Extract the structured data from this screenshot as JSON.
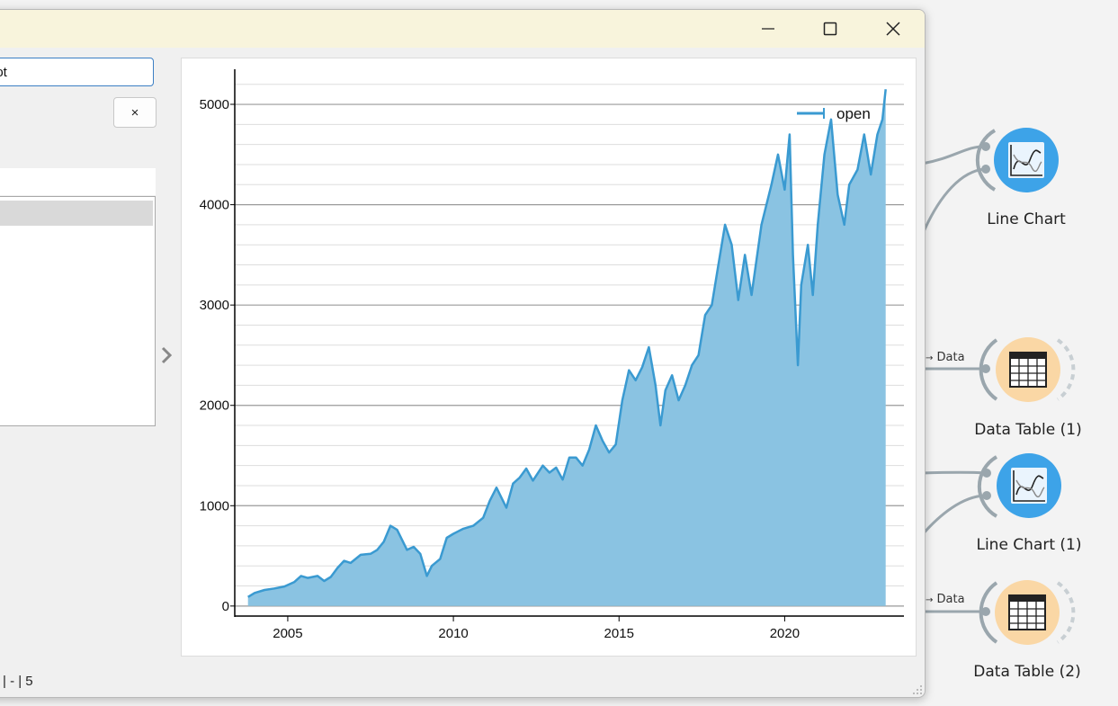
{
  "canvas": {
    "nodes": [
      {
        "label": "Line Chart",
        "icon": "line-chart-icon"
      },
      {
        "label": "Data Table (1)",
        "icon": "table-icon"
      },
      {
        "label": "Line Chart (1)",
        "icon": "line-chart-icon"
      },
      {
        "label": "Data Table (2)",
        "icon": "table-icon"
      }
    ],
    "links": [
      {
        "label": "Data"
      },
      {
        "label": "Data"
      }
    ],
    "link_arrow": "→"
  },
  "window": {
    "controls": {
      "minimize": "minimize-icon",
      "maximize": "maximize-icon",
      "close": "close-icon"
    },
    "name_field_value": "lot",
    "clear_label": "×",
    "status_text": "| - | 5"
  },
  "colors": {
    "line": "#3a9ad1",
    "fill": "#8ac3e2",
    "major_grid": "#9a9a9a",
    "minor_grid": "#dddddd",
    "node_blue": "#3da3e8",
    "node_orange": "#fad7a5",
    "title_bar": "#f8f4dc"
  },
  "chart_data": {
    "type": "area",
    "series": [
      {
        "name": "open",
        "points": [
          [
            2003.8,
            90
          ],
          [
            2004.0,
            130
          ],
          [
            2004.3,
            160
          ],
          [
            2004.6,
            175
          ],
          [
            2004.9,
            195
          ],
          [
            2005.2,
            240
          ],
          [
            2005.4,
            300
          ],
          [
            2005.6,
            280
          ],
          [
            2005.9,
            300
          ],
          [
            2006.1,
            250
          ],
          [
            2006.3,
            290
          ],
          [
            2006.5,
            380
          ],
          [
            2006.7,
            450
          ],
          [
            2006.9,
            430
          ],
          [
            2007.2,
            510
          ],
          [
            2007.5,
            520
          ],
          [
            2007.7,
            560
          ],
          [
            2007.9,
            640
          ],
          [
            2008.1,
            800
          ],
          [
            2008.3,
            760
          ],
          [
            2008.6,
            560
          ],
          [
            2008.8,
            590
          ],
          [
            2009.0,
            520
          ],
          [
            2009.2,
            300
          ],
          [
            2009.35,
            400
          ],
          [
            2009.6,
            470
          ],
          [
            2009.8,
            680
          ],
          [
            2010.0,
            720
          ],
          [
            2010.3,
            770
          ],
          [
            2010.6,
            800
          ],
          [
            2010.9,
            880
          ],
          [
            2011.1,
            1050
          ],
          [
            2011.3,
            1180
          ],
          [
            2011.6,
            980
          ],
          [
            2011.8,
            1220
          ],
          [
            2012.0,
            1280
          ],
          [
            2012.2,
            1370
          ],
          [
            2012.4,
            1250
          ],
          [
            2012.7,
            1400
          ],
          [
            2012.9,
            1330
          ],
          [
            2013.1,
            1380
          ],
          [
            2013.3,
            1260
          ],
          [
            2013.5,
            1480
          ],
          [
            2013.7,
            1480
          ],
          [
            2013.9,
            1400
          ],
          [
            2014.1,
            1560
          ],
          [
            2014.3,
            1800
          ],
          [
            2014.5,
            1650
          ],
          [
            2014.7,
            1530
          ],
          [
            2014.9,
            1610
          ],
          [
            2015.1,
            2050
          ],
          [
            2015.3,
            2350
          ],
          [
            2015.5,
            2250
          ],
          [
            2015.7,
            2380
          ],
          [
            2015.9,
            2580
          ],
          [
            2016.1,
            2200
          ],
          [
            2016.25,
            1800
          ],
          [
            2016.4,
            2150
          ],
          [
            2016.6,
            2300
          ],
          [
            2016.8,
            2050
          ],
          [
            2017.0,
            2200
          ],
          [
            2017.2,
            2400
          ],
          [
            2017.4,
            2500
          ],
          [
            2017.6,
            2900
          ],
          [
            2017.8,
            3000
          ],
          [
            2018.0,
            3400
          ],
          [
            2018.2,
            3800
          ],
          [
            2018.4,
            3600
          ],
          [
            2018.6,
            3050
          ],
          [
            2018.8,
            3500
          ],
          [
            2019.0,
            3100
          ],
          [
            2019.3,
            3800
          ],
          [
            2019.6,
            4200
          ],
          [
            2019.8,
            4500
          ],
          [
            2020.0,
            4150
          ],
          [
            2020.15,
            4700
          ],
          [
            2020.25,
            3500
          ],
          [
            2020.4,
            2400
          ],
          [
            2020.5,
            3200
          ],
          [
            2020.7,
            3600
          ],
          [
            2020.85,
            3100
          ],
          [
            2021.0,
            3800
          ],
          [
            2021.2,
            4500
          ],
          [
            2021.4,
            4850
          ],
          [
            2021.6,
            4100
          ],
          [
            2021.8,
            3800
          ],
          [
            2021.95,
            4200
          ],
          [
            2022.2,
            4350
          ],
          [
            2022.4,
            4700
          ],
          [
            2022.6,
            4300
          ],
          [
            2022.8,
            4700
          ],
          [
            2022.95,
            4850
          ],
          [
            2023.05,
            5150
          ]
        ]
      }
    ],
    "xlim": [
      2003.4,
      2023.6
    ],
    "ylim": [
      -100,
      5350
    ],
    "xticks": [
      2005,
      2010,
      2015,
      2020
    ],
    "yticks": [
      0,
      1000,
      2000,
      3000,
      4000,
      5000
    ],
    "minor_y_step": 200,
    "grid": true,
    "legend": "top-right"
  }
}
